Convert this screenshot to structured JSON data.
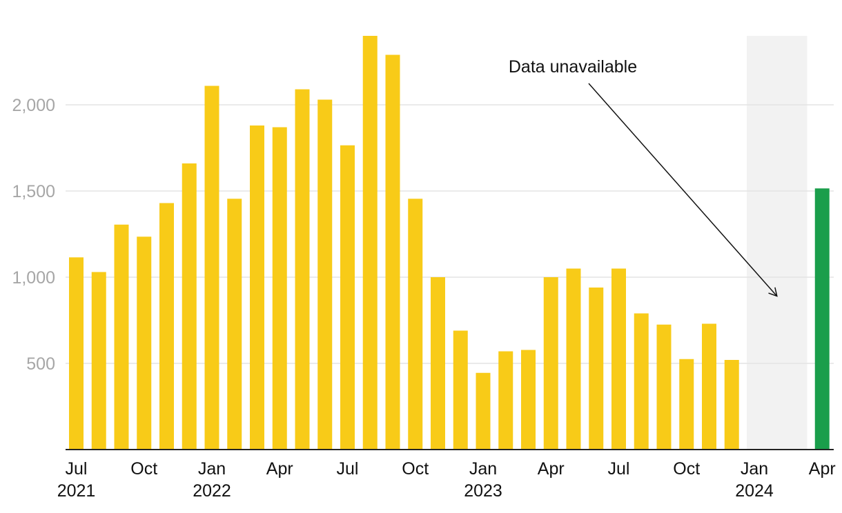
{
  "chart_data": {
    "type": "bar",
    "title": "",
    "xlabel": "",
    "ylabel": "",
    "ylim": [
      0,
      2400
    ],
    "yticks": [
      500,
      1000,
      1500,
      2000
    ],
    "ytick_labels": [
      "500",
      "1,000",
      "1,500",
      "2,000"
    ],
    "grid": true,
    "colors": {
      "bar": "#f8cb18",
      "highlight": "#1a9e4b",
      "unavailable": "#f2f2f2",
      "gridline": "#e3e3e3",
      "axis": "#222222"
    },
    "categories": [
      "2021-07",
      "2021-08",
      "2021-09",
      "2021-10",
      "2021-11",
      "2021-12",
      "2022-01",
      "2022-02",
      "2022-03",
      "2022-04",
      "2022-05",
      "2022-06",
      "2022-07",
      "2022-08",
      "2022-09",
      "2022-10",
      "2022-11",
      "2022-12",
      "2023-01",
      "2023-02",
      "2023-03",
      "2023-04",
      "2023-05",
      "2023-06",
      "2023-07",
      "2023-08",
      "2023-09",
      "2023-10",
      "2023-11",
      "2023-12",
      "2024-01",
      "2024-02",
      "2024-03",
      "2024-04"
    ],
    "values": [
      1115,
      1030,
      1305,
      1235,
      1430,
      1660,
      2110,
      1455,
      1880,
      1870,
      2090,
      2030,
      1765,
      2400,
      2290,
      1455,
      1000,
      690,
      445,
      570,
      578,
      1000,
      1050,
      940,
      1050,
      790,
      725,
      525,
      730,
      520,
      null,
      null,
      null,
      1515
    ],
    "highlight_index": 33,
    "unavailable_range": [
      "2024-01",
      "2024-03"
    ],
    "x_tick_labels": [
      {
        "index": 0,
        "month": "Jul",
        "year": "2021"
      },
      {
        "index": 3,
        "month": "Oct",
        "year": ""
      },
      {
        "index": 6,
        "month": "Jan",
        "year": "2022"
      },
      {
        "index": 9,
        "month": "Apr",
        "year": ""
      },
      {
        "index": 12,
        "month": "Jul",
        "year": ""
      },
      {
        "index": 15,
        "month": "Oct",
        "year": ""
      },
      {
        "index": 18,
        "month": "Jan",
        "year": "2023"
      },
      {
        "index": 21,
        "month": "Apr",
        "year": ""
      },
      {
        "index": 24,
        "month": "Jul",
        "year": ""
      },
      {
        "index": 27,
        "month": "Oct",
        "year": ""
      },
      {
        "index": 30,
        "month": "Jan",
        "year": "2024"
      },
      {
        "index": 33,
        "month": "Apr",
        "year": ""
      }
    ],
    "annotations": [
      {
        "text": "Data unavailable",
        "target_index": 31,
        "target_value": 890
      }
    ]
  }
}
